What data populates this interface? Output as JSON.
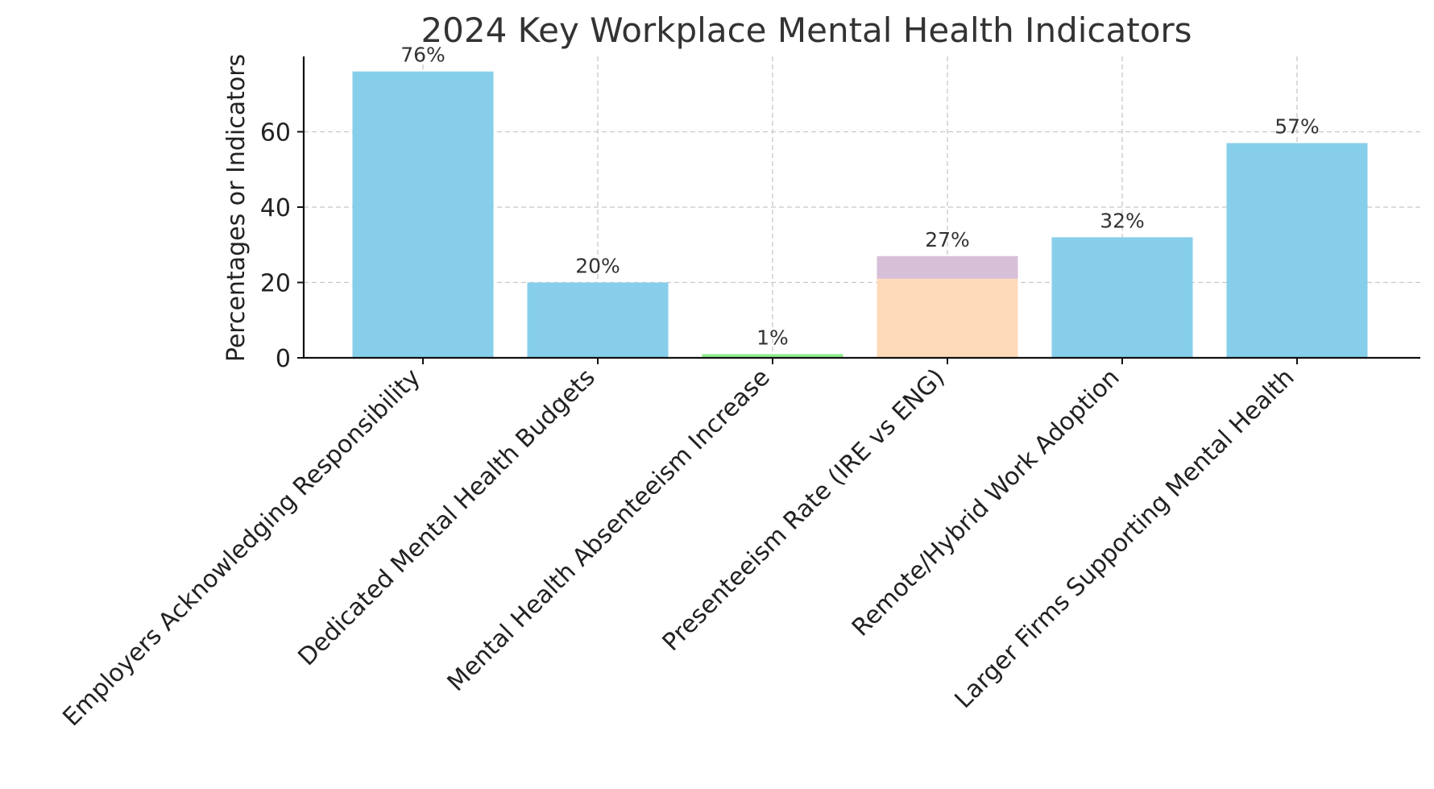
{
  "chart_data": {
    "type": "bar",
    "title": "2024 Key Workplace Mental Health Indicators",
    "xlabel": "",
    "ylabel": "Percentages or Indicators",
    "ylim": [
      0,
      80
    ],
    "yticks": [
      0,
      20,
      40,
      60
    ],
    "grid": true,
    "categories": [
      "Employers Acknowledging Responsibility",
      "Dedicated Mental Health Budgets",
      "Mental Health Absenteeism Increase",
      "Presenteeism Rate (IRE vs ENG)",
      "Remote/Hybrid Work Adoption",
      "Larger Firms Supporting Mental Health"
    ],
    "values": [
      76,
      20,
      1,
      27,
      32,
      57
    ],
    "data_labels": [
      "76%",
      "20%",
      "1%",
      "27%",
      "32%",
      "57%"
    ],
    "stacked": {
      "category": "Presenteeism Rate (IRE vs ENG)",
      "segments": [
        {
          "value": 21,
          "color": "#ffdab9"
        },
        {
          "value": 6,
          "color": "#d8bfd8"
        }
      ]
    },
    "colors": {
      "default": "#87ceeb",
      "Mental Health Absenteeism Increase": "#90ee90"
    }
  }
}
